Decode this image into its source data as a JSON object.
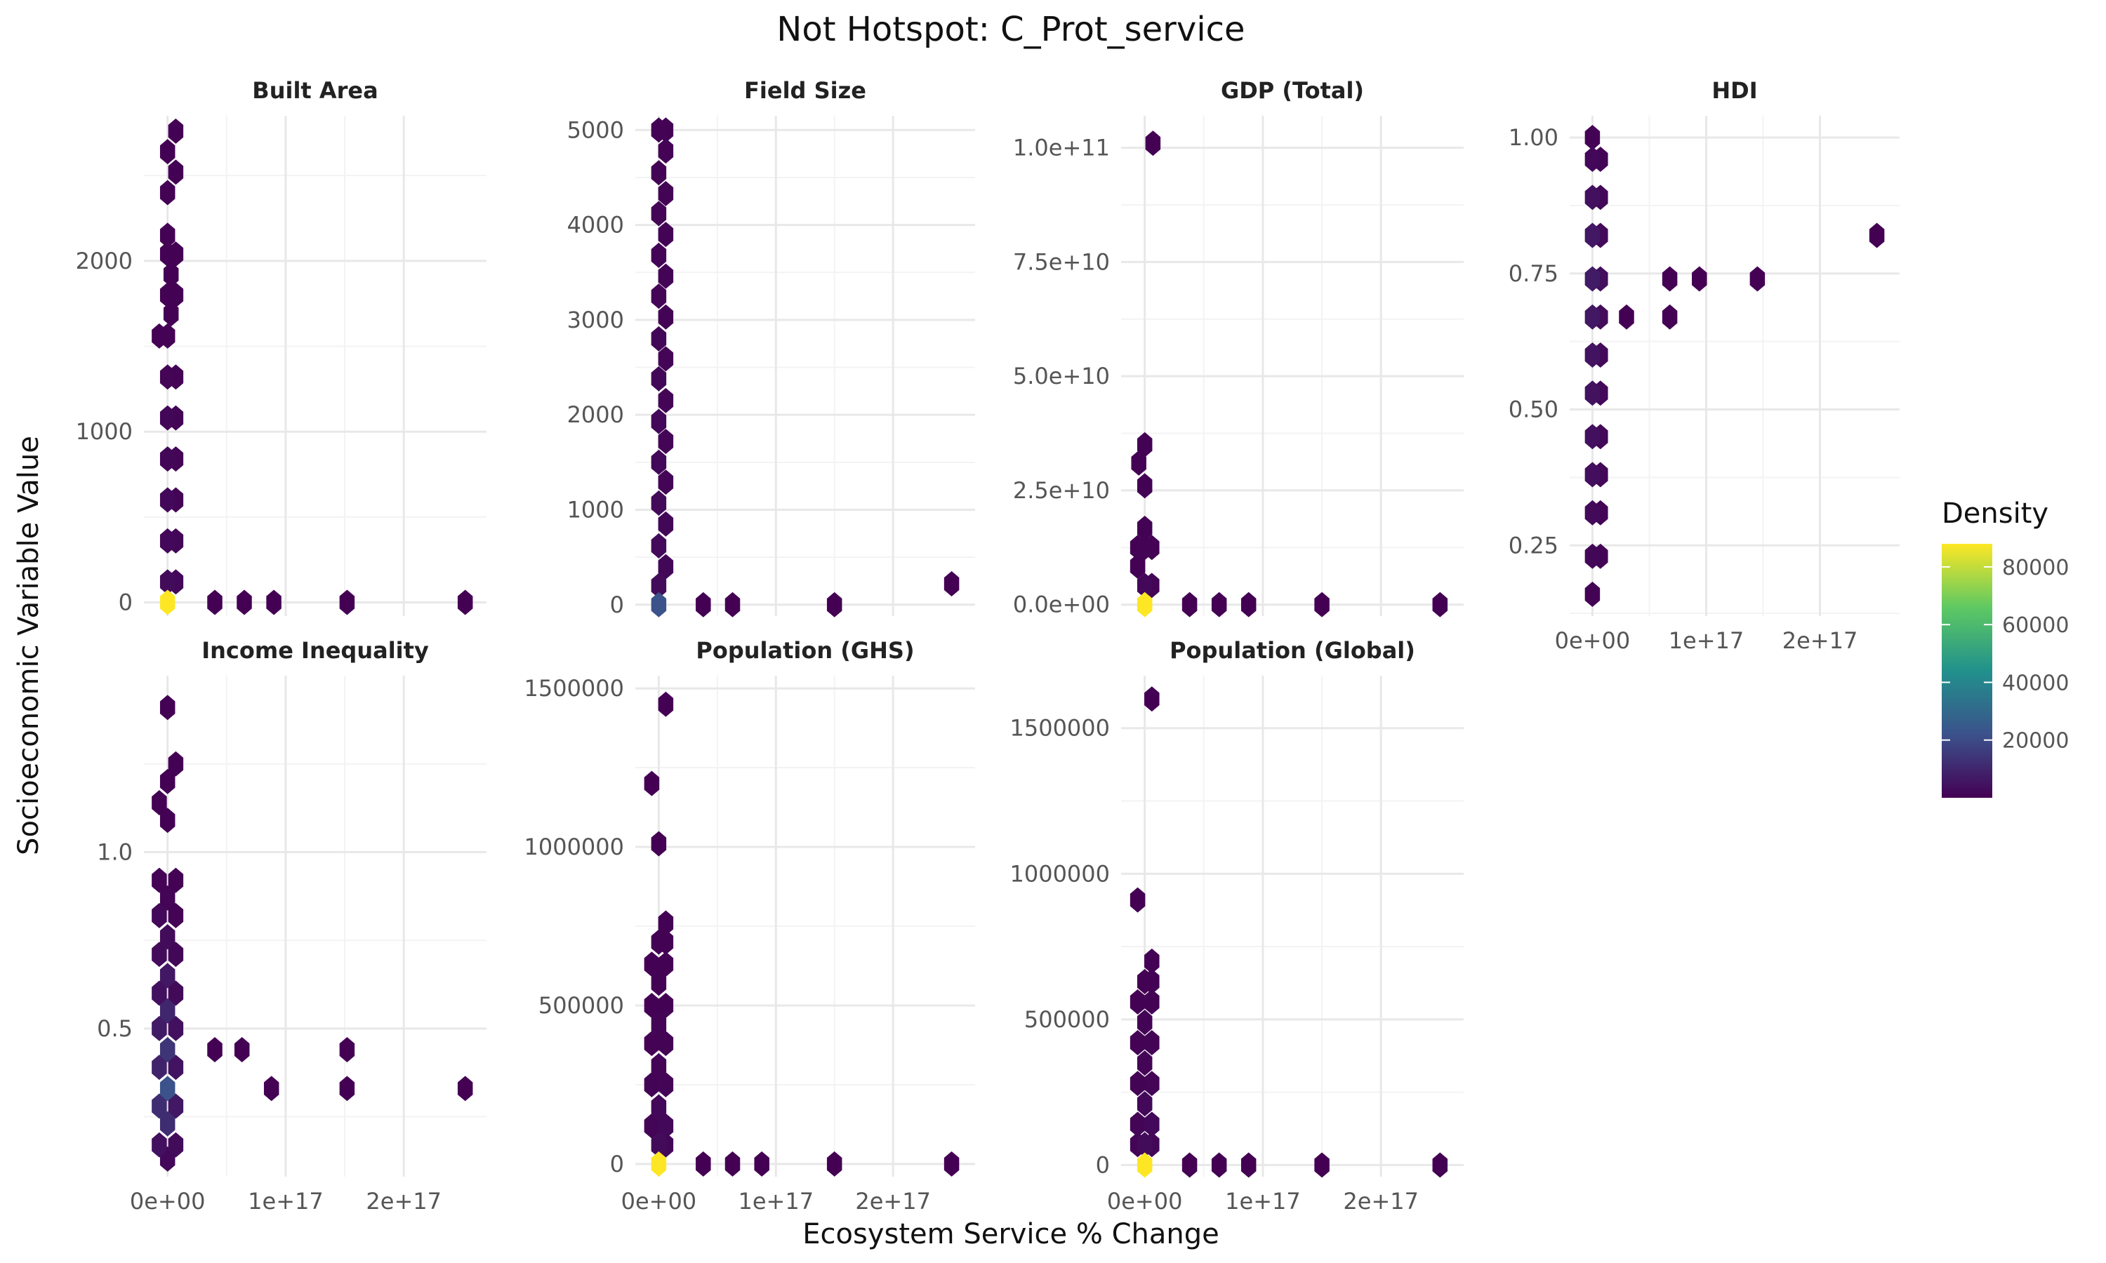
{
  "figure": {
    "title": "Not Hotspot: C_Prot_service",
    "xlabel": "Ecosystem Service % Change",
    "ylabel": "Socioeconomic Variable Value"
  },
  "legend": {
    "title": "Density",
    "ticks": [
      "20000",
      "40000",
      "60000",
      "80000"
    ],
    "tick_values": [
      20000,
      40000,
      60000,
      80000
    ],
    "range": [
      1,
      88000
    ],
    "placement": "right",
    "colors": [
      "#440154",
      "#3b528b",
      "#21918c",
      "#5ec962",
      "#fde725"
    ]
  },
  "chart_data": [
    {
      "type": "hexbin",
      "title": "Built Area",
      "xlim": [
        -2e+16,
        2.7e+17
      ],
      "ylim": [
        -80,
        2850
      ],
      "xticks": [
        0,
        1e+17,
        2e+17
      ],
      "xtick_labels": [
        "0e+00",
        "1e+17",
        "2e+17"
      ],
      "yticks": [
        0,
        1000,
        2000
      ],
      "ytick_labels": [
        "0",
        "1000",
        "2000"
      ],
      "grid": true,
      "points": [
        [
          0,
          0,
          88000
        ],
        [
          0,
          120,
          3000
        ],
        [
          0,
          360,
          2000
        ],
        [
          0,
          600,
          2000
        ],
        [
          0,
          840,
          1500
        ],
        [
          0,
          1080,
          1500
        ],
        [
          0,
          1320,
          1000
        ],
        [
          0,
          1560,
          500
        ],
        [
          0,
          1800,
          400
        ],
        [
          0,
          2040,
          300
        ],
        [
          0,
          2150,
          200
        ],
        [
          0,
          2400,
          200
        ],
        [
          0,
          2640,
          200
        ],
        [
          7000000000000000.0,
          120,
          2000
        ],
        [
          7000000000000000.0,
          360,
          1500
        ],
        [
          7000000000000000.0,
          600,
          1000
        ],
        [
          7000000000000000.0,
          840,
          1000
        ],
        [
          7000000000000000.0,
          1080,
          800
        ],
        [
          7000000000000000.0,
          1320,
          500
        ],
        [
          7000000000000000.0,
          1800,
          300
        ],
        [
          7000000000000000.0,
          2040,
          300
        ],
        [
          7000000000000000.0,
          2520,
          200
        ],
        [
          7000000000000000.0,
          2760,
          200
        ],
        [
          -7000000000000000.0,
          1560,
          200
        ],
        [
          3000000000000000.0,
          1690,
          200
        ],
        [
          3000000000000000.0,
          1920,
          200
        ],
        [
          4e+16,
          0,
          100
        ],
        [
          6.5e+16,
          0,
          100
        ],
        [
          9e+16,
          0,
          100
        ],
        [
          1.52e+17,
          0,
          100
        ],
        [
          2.52e+17,
          0,
          100
        ]
      ]
    },
    {
      "type": "hexbin",
      "title": "Field Size",
      "xlim": [
        -2e+16,
        2.7e+17
      ],
      "ylim": [
        -120,
        5150
      ],
      "xticks": [
        0,
        1e+17,
        2e+17
      ],
      "xtick_labels": [
        "0e+00",
        "1e+17",
        "2e+17"
      ],
      "yticks": [
        0,
        1000,
        2000,
        3000,
        4000,
        5000
      ],
      "ytick_labels": [
        "0",
        "1000",
        "2000",
        "3000",
        "4000",
        "5000"
      ],
      "grid": true,
      "points": [
        [
          0,
          0,
          22000
        ],
        [
          0,
          200,
          3000
        ],
        [
          0,
          620,
          2500
        ],
        [
          0,
          1070,
          2500
        ],
        [
          0,
          1500,
          2000
        ],
        [
          0,
          1930,
          2000
        ],
        [
          0,
          2380,
          1500
        ],
        [
          0,
          2800,
          1500
        ],
        [
          0,
          3250,
          1200
        ],
        [
          0,
          3680,
          1000
        ],
        [
          0,
          4120,
          1000
        ],
        [
          0,
          4550,
          800
        ],
        [
          0,
          5000,
          500
        ],
        [
          6000000000000000.0,
          400,
          1500
        ],
        [
          6000000000000000.0,
          850,
          1500
        ],
        [
          6000000000000000.0,
          1290,
          1200
        ],
        [
          6000000000000000.0,
          1720,
          1200
        ],
        [
          6000000000000000.0,
          2150,
          1000
        ],
        [
          6000000000000000.0,
          2590,
          1000
        ],
        [
          6000000000000000.0,
          3030,
          900
        ],
        [
          6000000000000000.0,
          3460,
          800
        ],
        [
          6000000000000000.0,
          3900,
          800
        ],
        [
          6000000000000000.0,
          4330,
          700
        ],
        [
          6000000000000000.0,
          4780,
          500
        ],
        [
          6000000000000000.0,
          5000,
          300
        ],
        [
          3.8e+16,
          0,
          100
        ],
        [
          6.3e+16,
          0,
          100
        ],
        [
          1.5e+17,
          0,
          100
        ],
        [
          2.5e+17,
          220,
          100
        ]
      ]
    },
    {
      "type": "hexbin",
      "title": "GDP (Total)",
      "xlim": [
        -2e+16,
        2.7e+17
      ],
      "ylim": [
        -2500000000.0,
        107000000000.0
      ],
      "xticks": [
        0,
        1e+17,
        2e+17
      ],
      "xtick_labels": [
        "0e+00",
        "1e+17",
        "2e+17"
      ],
      "yticks": [
        0,
        25000000000.0,
        50000000000.0,
        75000000000.0,
        100000000000.0
      ],
      "ytick_labels": [
        "0.0e+00",
        "2.5e+10",
        "5.0e+10",
        "7.5e+10",
        "1.0e+11"
      ],
      "grid": true,
      "points": [
        [
          0,
          0,
          88000
        ],
        [
          0,
          4200000000.0,
          2000
        ],
        [
          0,
          12500000000.0,
          800
        ],
        [
          0,
          26000000000.0,
          300
        ],
        [
          0,
          35000000000.0,
          200
        ],
        [
          -5000000000000000.0,
          31000000000.0,
          200
        ],
        [
          6000000000000000.0,
          4200000000.0,
          1000
        ],
        [
          6000000000000000.0,
          12500000000.0,
          500
        ],
        [
          -6000000000000000.0,
          8400000000.0,
          400
        ],
        [
          -6000000000000000.0,
          12500000000.0,
          400
        ],
        [
          0,
          16700000000.0,
          300
        ],
        [
          7000000000000000.0,
          101000000000.0,
          100
        ],
        [
          3.8e+16,
          0,
          100
        ],
        [
          6.3e+16,
          0,
          100
        ],
        [
          8.8e+16,
          0,
          100
        ],
        [
          1.5e+17,
          0,
          100
        ],
        [
          2.5e+17,
          0,
          100
        ]
      ]
    },
    {
      "type": "hexbin",
      "title": "HDI",
      "xlim": [
        -2e+16,
        2.7e+17
      ],
      "ylim": [
        0.12,
        1.04
      ],
      "xticks": [
        0,
        1e+17,
        2e+17
      ],
      "xtick_labels": [
        "0e+00",
        "1e+17",
        "2e+17"
      ],
      "yticks": [
        0.25,
        0.5,
        0.75,
        1.0
      ],
      "ytick_labels": [
        "0.25",
        "0.50",
        "0.75",
        "1.00"
      ],
      "grid": true,
      "points": [
        [
          0,
          0.16,
          400
        ],
        [
          0,
          0.23,
          1500
        ],
        [
          0,
          0.31,
          2500
        ],
        [
          0,
          0.38,
          3500
        ],
        [
          0,
          0.45,
          4000
        ],
        [
          0,
          0.53,
          4500
        ],
        [
          0,
          0.6,
          5000
        ],
        [
          0,
          0.67,
          6000
        ],
        [
          0,
          0.74,
          7000
        ],
        [
          0,
          0.82,
          6000
        ],
        [
          0,
          0.89,
          4000
        ],
        [
          0,
          0.96,
          2000
        ],
        [
          0,
          1.0,
          400
        ],
        [
          7000000000000000.0,
          0.23,
          800
        ],
        [
          7000000000000000.0,
          0.31,
          1200
        ],
        [
          7000000000000000.0,
          0.38,
          1500
        ],
        [
          7000000000000000.0,
          0.45,
          1800
        ],
        [
          7000000000000000.0,
          0.53,
          2000
        ],
        [
          7000000000000000.0,
          0.6,
          2500
        ],
        [
          7000000000000000.0,
          0.67,
          3000
        ],
        [
          7000000000000000.0,
          0.74,
          3500
        ],
        [
          7000000000000000.0,
          0.82,
          2500
        ],
        [
          7000000000000000.0,
          0.89,
          1500
        ],
        [
          7000000000000000.0,
          0.96,
          800
        ],
        [
          3e+16,
          0.67,
          100
        ],
        [
          6.8e+16,
          0.74,
          100
        ],
        [
          6.8e+16,
          0.67,
          100
        ],
        [
          9.4e+16,
          0.74,
          100
        ],
        [
          1.45e+17,
          0.74,
          100
        ],
        [
          2.5e+17,
          0.82,
          100
        ]
      ]
    },
    {
      "type": "hexbin",
      "title": "Income Inequality",
      "xlim": [
        -2e+16,
        2.7e+17
      ],
      "ylim": [
        0.08,
        1.5
      ],
      "xticks": [
        0,
        1e+17,
        2e+17
      ],
      "xtick_labels": [
        "0e+00",
        "1e+17",
        "2e+17"
      ],
      "yticks": [
        0.5,
        1.0
      ],
      "ytick_labels": [
        "0.5",
        "1.0"
      ],
      "grid": true,
      "points": [
        [
          0,
          0.13,
          2000
        ],
        [
          0,
          0.23,
          12000
        ],
        [
          0,
          0.33,
          22000
        ],
        [
          0,
          0.44,
          14000
        ],
        [
          0,
          0.55,
          10000
        ],
        [
          0,
          0.65,
          6000
        ],
        [
          0,
          0.76,
          3000
        ],
        [
          0,
          0.87,
          1000
        ],
        [
          -7000000000000000.0,
          0.17,
          4000
        ],
        [
          -7000000000000000.0,
          0.28,
          12000
        ],
        [
          -7000000000000000.0,
          0.39,
          9000
        ],
        [
          -7000000000000000.0,
          0.5,
          7000
        ],
        [
          -7000000000000000.0,
          0.6,
          4000
        ],
        [
          -7000000000000000.0,
          0.71,
          3000
        ],
        [
          -7000000000000000.0,
          0.82,
          2000
        ],
        [
          -7000000000000000.0,
          0.92,
          600
        ],
        [
          7000000000000000.0,
          0.17,
          3000
        ],
        [
          7000000000000000.0,
          0.28,
          6000
        ],
        [
          7000000000000000.0,
          0.39,
          5000
        ],
        [
          7000000000000000.0,
          0.5,
          4000
        ],
        [
          7000000000000000.0,
          0.6,
          2500
        ],
        [
          7000000000000000.0,
          0.71,
          1500
        ],
        [
          7000000000000000.0,
          0.82,
          600
        ],
        [
          7000000000000000.0,
          0.92,
          300
        ],
        [
          -7000000000000000.0,
          1.14,
          200
        ],
        [
          0,
          1.09,
          200
        ],
        [
          0,
          1.2,
          200
        ],
        [
          7000000000000000.0,
          1.25,
          200
        ],
        [
          0,
          1.41,
          200
        ],
        [
          4e+16,
          0.44,
          100
        ],
        [
          6.3e+16,
          0.44,
          100
        ],
        [
          8.8e+16,
          0.33,
          100
        ],
        [
          1.52e+17,
          0.44,
          100
        ],
        [
          1.52e+17,
          0.33,
          100
        ],
        [
          2.52e+17,
          0.33,
          100
        ]
      ]
    },
    {
      "type": "hexbin",
      "title": "Population (GHS)",
      "xlim": [
        -2e+16,
        2.7e+17
      ],
      "ylim": [
        -40000,
        1540000
      ],
      "xticks": [
        0,
        1e+17,
        2e+17
      ],
      "xtick_labels": [
        "0e+00",
        "1e+17",
        "2e+17"
      ],
      "yticks": [
        0,
        500000,
        1000000,
        1500000
      ],
      "ytick_labels": [
        "0",
        "500000",
        "1000000",
        "1500000"
      ],
      "grid": true,
      "points": [
        [
          0,
          0,
          88000
        ],
        [
          0,
          60000,
          3000
        ],
        [
          0,
          180000,
          2000
        ],
        [
          0,
          310000,
          1200
        ],
        [
          0,
          440000,
          800
        ],
        [
          0,
          570000,
          400
        ],
        [
          0,
          700000,
          300
        ],
        [
          6000000000000000.0,
          120000,
          2000
        ],
        [
          6000000000000000.0,
          250000,
          1200
        ],
        [
          6000000000000000.0,
          380000,
          800
        ],
        [
          6000000000000000.0,
          500000,
          400
        ],
        [
          6000000000000000.0,
          630000,
          300
        ],
        [
          6000000000000000.0,
          760000,
          200
        ],
        [
          -6000000000000000.0,
          120000,
          1000
        ],
        [
          -6000000000000000.0,
          250000,
          800
        ],
        [
          -6000000000000000.0,
          380000,
          500
        ],
        [
          -6000000000000000.0,
          500000,
          300
        ],
        [
          -6000000000000000.0,
          630000,
          200
        ],
        [
          6000000000000000.0,
          60000,
          1500
        ],
        [
          6000000000000000.0,
          700000,
          200
        ],
        [
          -6000000000000000.0,
          1200000,
          100
        ],
        [
          0,
          1010000,
          100
        ],
        [
          6000000000000000.0,
          1450000,
          100
        ],
        [
          3.8e+16,
          0,
          100
        ],
        [
          6.3e+16,
          0,
          100
        ],
        [
          8.8e+16,
          0,
          100
        ],
        [
          1.5e+17,
          0,
          100
        ],
        [
          2.5e+17,
          0,
          100
        ]
      ]
    },
    {
      "type": "hexbin",
      "title": "Population (Global)",
      "xlim": [
        -2e+16,
        2.7e+17
      ],
      "ylim": [
        -40000,
        1680000
      ],
      "xticks": [
        0,
        1e+17,
        2e+17
      ],
      "xtick_labels": [
        "0e+00",
        "1e+17",
        "2e+17"
      ],
      "yticks": [
        0,
        500000,
        1000000,
        1500000
      ],
      "ytick_labels": [
        "0",
        "500000",
        "1000000",
        "1500000"
      ],
      "grid": true,
      "points": [
        [
          0,
          0,
          88000
        ],
        [
          0,
          70000,
          3000
        ],
        [
          0,
          210000,
          2000
        ],
        [
          0,
          350000,
          1200
        ],
        [
          0,
          490000,
          800
        ],
        [
          0,
          630000,
          300
        ],
        [
          6000000000000000.0,
          140000,
          2000
        ],
        [
          6000000000000000.0,
          280000,
          1200
        ],
        [
          6000000000000000.0,
          420000,
          800
        ],
        [
          6000000000000000.0,
          560000,
          400
        ],
        [
          6000000000000000.0,
          700000,
          200
        ],
        [
          6000000000000000.0,
          630000,
          200
        ],
        [
          -6000000000000000.0,
          140000,
          1000
        ],
        [
          -6000000000000000.0,
          280000,
          800
        ],
        [
          -6000000000000000.0,
          420000,
          500
        ],
        [
          -6000000000000000.0,
          560000,
          300
        ],
        [
          6000000000000000.0,
          70000,
          1500
        ],
        [
          -6000000000000000.0,
          70000,
          1000
        ],
        [
          -6000000000000000.0,
          910000,
          100
        ],
        [
          6000000000000000.0,
          1600000,
          100
        ],
        [
          3.8e+16,
          0,
          100
        ],
        [
          6.3e+16,
          0,
          100
        ],
        [
          8.8e+16,
          0,
          100
        ],
        [
          1.5e+17,
          0,
          100
        ],
        [
          2.5e+17,
          0,
          100
        ]
      ]
    }
  ]
}
